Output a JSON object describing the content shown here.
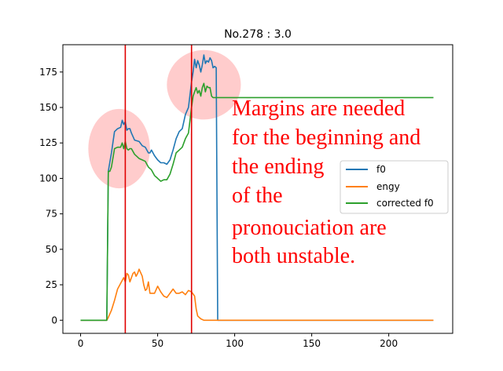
{
  "chart_data": {
    "type": "line",
    "title": "No.278 :  3.0",
    "xlabel": "",
    "ylabel": "",
    "xlim": [
      -11.5,
      241.5
    ],
    "ylim": [
      -9.25,
      194.25
    ],
    "xticks": [
      0,
      50,
      100,
      150,
      200
    ],
    "yticks": [
      0,
      25,
      50,
      75,
      100,
      125,
      150,
      175
    ],
    "grid": false,
    "legend_position": "center-right",
    "series": [
      {
        "name": "f0",
        "color": "#1f77b4",
        "x": [
          0,
          17,
          18,
          20,
          22,
          24,
          26,
          27,
          28,
          29,
          30,
          31,
          32,
          33,
          35,
          38,
          40,
          42,
          44,
          45,
          46,
          48,
          50,
          52,
          54,
          56,
          58,
          60,
          62,
          64,
          66,
          68,
          70,
          72,
          73,
          74,
          75,
          76,
          77,
          78,
          79,
          80,
          81,
          82,
          83,
          84,
          85,
          86,
          87,
          88,
          89,
          90,
          100,
          150,
          200,
          229
        ],
        "y": [
          0,
          0,
          105,
          118,
          133,
          135,
          136,
          141,
          138,
          140,
          134,
          135,
          135,
          132,
          127,
          126,
          123,
          122,
          118,
          118,
          120,
          116,
          113,
          111,
          111,
          110,
          113,
          120,
          128,
          133,
          135,
          145,
          150,
          168,
          175,
          184,
          178,
          183,
          180,
          175,
          180,
          187,
          181,
          183,
          182,
          185,
          183,
          178,
          179,
          178,
          0,
          0,
          0,
          0,
          0,
          0
        ]
      },
      {
        "name": "engy",
        "color": "#ff7f0e",
        "x": [
          0,
          16,
          17,
          18,
          20,
          22,
          24,
          26,
          28,
          29,
          30,
          31,
          32,
          33,
          34,
          35,
          36,
          37,
          38,
          40,
          41,
          42,
          43,
          44,
          45,
          46,
          48,
          50,
          52,
          54,
          56,
          58,
          60,
          62,
          64,
          66,
          68,
          70,
          72,
          74,
          75,
          76,
          78,
          80,
          82,
          85,
          90,
          100,
          150,
          200,
          229
        ],
        "y": [
          0,
          0,
          0,
          2,
          7,
          14,
          22,
          26,
          30,
          27,
          33,
          32,
          27,
          30,
          33,
          34,
          31,
          33,
          36,
          31,
          25,
          21,
          22,
          27,
          19,
          19,
          19,
          24,
          20,
          17,
          16,
          19,
          22,
          19,
          19,
          20,
          18,
          21,
          20,
          17,
          8,
          3,
          1,
          0,
          0,
          0,
          0,
          0,
          0,
          0,
          0
        ]
      },
      {
        "name": "corrected f0",
        "color": "#2ca02c",
        "x": [
          0,
          17,
          18,
          19,
          20,
          22,
          24,
          26,
          27,
          28,
          29,
          30,
          31,
          32,
          33,
          35,
          38,
          40,
          42,
          44,
          45,
          46,
          48,
          50,
          52,
          54,
          56,
          58,
          60,
          62,
          64,
          66,
          68,
          70,
          72,
          73,
          74,
          75,
          76,
          77,
          78,
          79,
          80,
          81,
          82,
          83,
          84,
          85,
          86,
          87,
          88,
          89,
          90,
          100,
          150,
          200,
          229
        ],
        "y": [
          0,
          0,
          105,
          105,
          108,
          121,
          122,
          122,
          125,
          121,
          126,
          121,
          120,
          121,
          121,
          117,
          114,
          113,
          112,
          108,
          107,
          106,
          102,
          100,
          98,
          99,
          99,
          103,
          110,
          118,
          120,
          122,
          128,
          132,
          150,
          158,
          161,
          164,
          160,
          162,
          158,
          164,
          167,
          161,
          165,
          164,
          164,
          158,
          157,
          157,
          157,
          157,
          157,
          157,
          157,
          157,
          157
        ]
      }
    ],
    "vlines": [
      {
        "x": 29,
        "color": "#e00000"
      },
      {
        "x": 72,
        "color": "#e00000"
      }
    ],
    "highlight_circles": [
      {
        "cx": 25,
        "cy": 121,
        "rx": 20,
        "ry": 28,
        "color": "#ffb6b6"
      },
      {
        "cx": 80,
        "cy": 166,
        "rx": 24,
        "ry": 24.5,
        "color": "#ffb6b6"
      }
    ],
    "annotation": {
      "lines": [
        "Margins are needed",
        "for the beginning and",
        "the ending",
        "of the",
        "pronouciation are",
        "both unstable."
      ],
      "color": "#ff0000"
    }
  }
}
